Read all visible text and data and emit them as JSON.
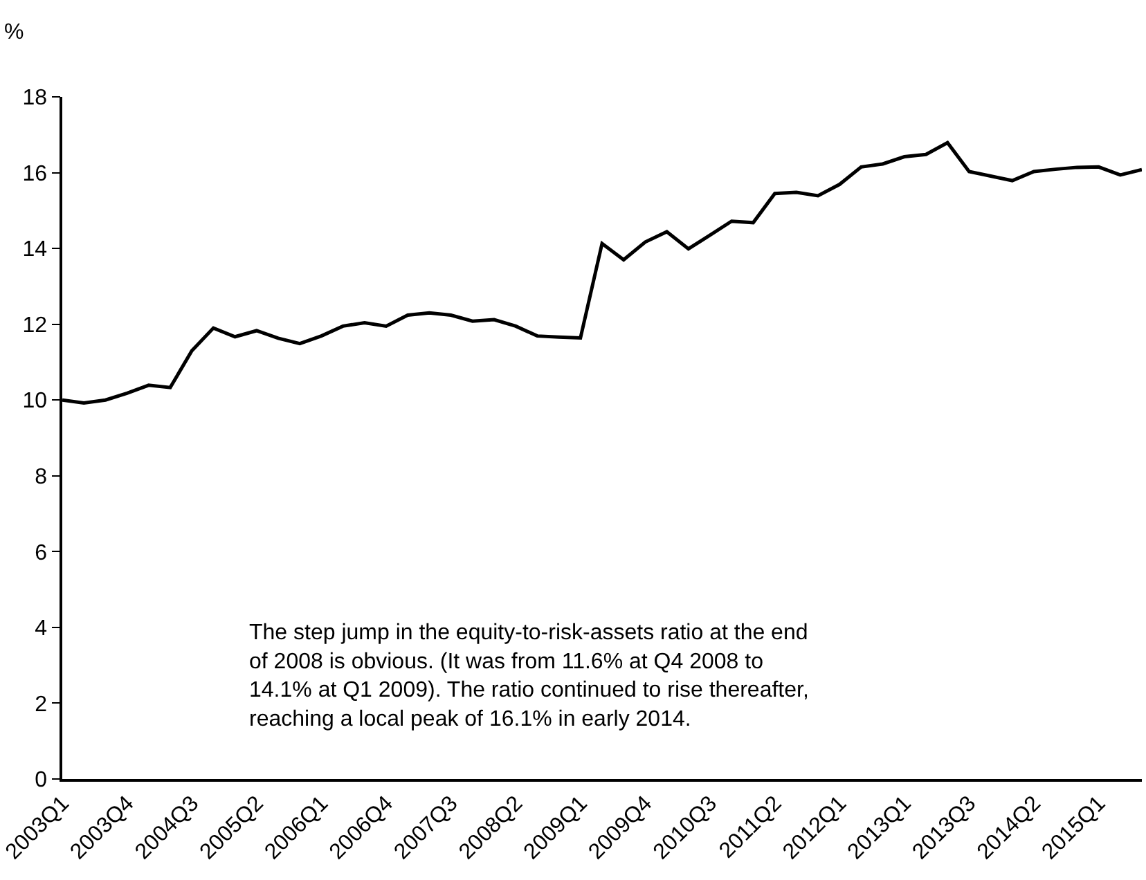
{
  "chart_data": {
    "type": "line",
    "ylabel": "%",
    "categories": [
      "2003Q1",
      null,
      null,
      "2003Q4",
      null,
      null,
      "2004Q3",
      null,
      null,
      "2005Q2",
      null,
      null,
      "2006Q1",
      null,
      null,
      "2006Q4",
      null,
      null,
      "2007Q3",
      null,
      null,
      "2008Q2",
      null,
      null,
      "2009Q1",
      null,
      null,
      "2009Q4",
      null,
      null,
      "2010Q3",
      null,
      null,
      "2011Q2",
      null,
      null,
      "2012Q1",
      null,
      null,
      "2013Q1",
      null,
      null,
      "2013Q3",
      null,
      null,
      "2014Q2",
      null,
      null,
      "2015Q1",
      null,
      null
    ],
    "series": [
      {
        "color": "#000000",
        "values": [
          10.0,
          9.92,
          10.0,
          10.18,
          10.39,
          10.33,
          11.3,
          11.9,
          11.67,
          11.83,
          11.63,
          11.49,
          11.69,
          11.95,
          12.04,
          11.95,
          12.24,
          12.3,
          12.24,
          12.08,
          12.12,
          11.95,
          11.69,
          11.66,
          11.64,
          14.13,
          13.7,
          14.17,
          14.44,
          13.99,
          14.35,
          14.72,
          14.68,
          15.45,
          15.48,
          15.39,
          15.69,
          16.15,
          16.23,
          16.42,
          16.48,
          16.79,
          16.03,
          15.91,
          15.79,
          16.03,
          16.09,
          16.14,
          16.15,
          15.94,
          16.08
        ]
      }
    ],
    "ylim": [
      0,
      18
    ],
    "yticks": [
      0,
      2,
      4,
      6,
      8,
      10,
      12,
      14,
      16,
      18
    ],
    "grid": false,
    "marker": "none",
    "line_style": "solid",
    "annotations": [
      "The step jump in the equity-to-risk-assets ratio at the end\nof 2008 is obvious. (It was from 11.6% at Q4 2008 to\n14.1% at Q1 2009). The ratio continued to rise thereafter,\nreaching a local peak of 16.1% in early 2014."
    ]
  }
}
